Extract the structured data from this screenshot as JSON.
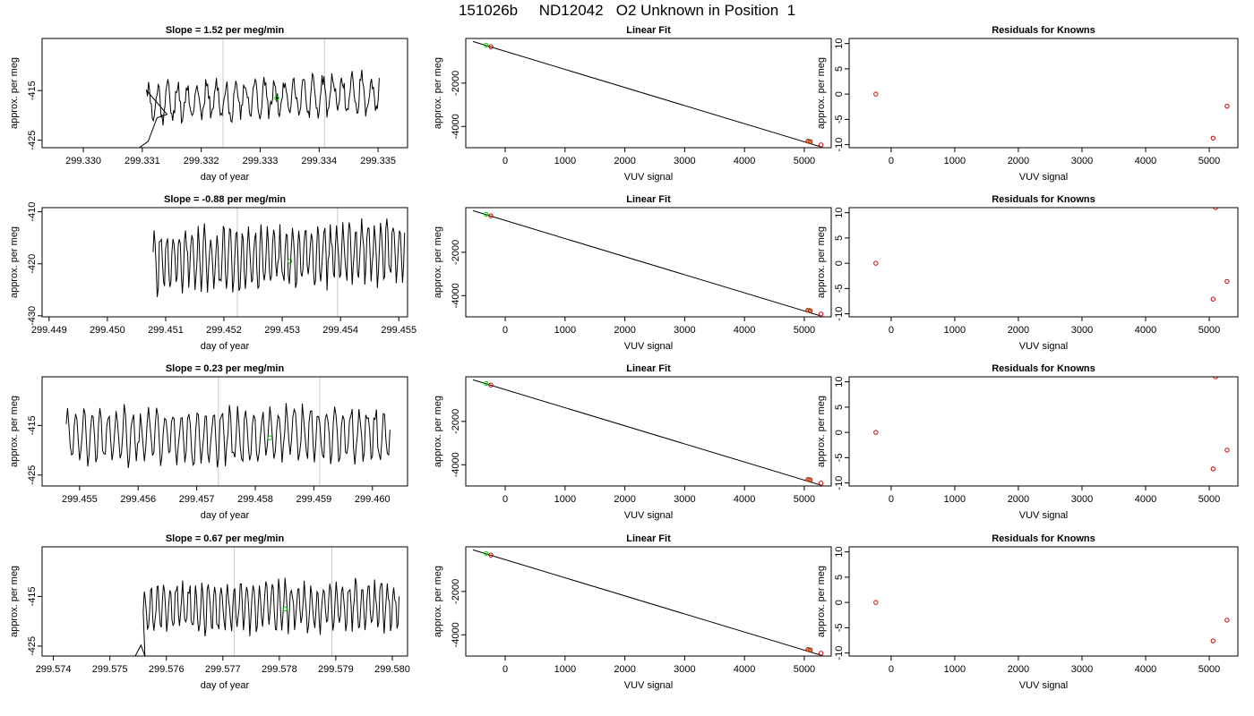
{
  "title": "151026b     ND12042   O2 Unknown in Position  1",
  "chart_data": [
    {
      "type": "line",
      "title": "Slope =  1.52  per meg/min",
      "xlabel": "day of year",
      "ylabel": "approx. per meg",
      "xlim": [
        299.3293,
        299.3355
      ],
      "ylim": [
        -426.5,
        -404.5
      ],
      "xticks": [
        "299.330",
        "299.331",
        "299.332",
        "299.333",
        "299.334",
        "299.335"
      ],
      "xtick_values": [
        299.33,
        299.331,
        299.332,
        299.333,
        299.334,
        299.335
      ],
      "yticks": [
        "-425",
        "-415"
      ],
      "ytick_values": [
        -425,
        -415
      ],
      "vlines": [
        299.33237,
        299.33409
      ],
      "marker": {
        "x": 299.33328,
        "y": -416.5,
        "color": "#00cc00"
      },
      "series": [
        {
          "color": "#000000",
          "x0": 299.33095,
          "x1": 299.33502,
          "seed": 11,
          "mean": -416.5,
          "amp": 3.5,
          "period": 10,
          "noise": 1.5,
          "trend": 2.0,
          "yrange": [
            -426.5,
            -404.5
          ],
          "prefix": [
            [
              299.33095,
              -426.5
            ],
            [
              299.3311,
              -425.2
            ],
            [
              299.33125,
              -420.5
            ],
            [
              299.33142,
              -419.8
            ]
          ]
        }
      ],
      "line_color": "#000000"
    },
    {
      "type": "scatter",
      "title": "Linear Fit",
      "xlabel": "VUV signal",
      "ylabel": "approx. per meg",
      "xlim": [
        -660,
        5450
      ],
      "ylim": [
        -4980,
        60
      ],
      "xticks": [
        "0",
        "1000",
        "2000",
        "3000",
        "4000",
        "5000"
      ],
      "xtick_values": [
        0,
        1000,
        2000,
        3000,
        4000,
        5000
      ],
      "yticks": [
        "-4000",
        "-2000"
      ],
      "ytick_values": [
        -4000,
        -2000
      ],
      "fit_line": {
        "x": [
          -540,
          5300
        ],
        "y": [
          -80,
          -4960
        ]
      },
      "points": [
        {
          "x": -320,
          "y": -250,
          "color": "#00cc00"
        },
        {
          "x": -240,
          "y": -320,
          "color": "#cc0000"
        },
        {
          "x": 5060,
          "y": -4680,
          "color": "#cc0000"
        },
        {
          "x": 5080,
          "y": -4690,
          "color": "#00cc00"
        },
        {
          "x": 5100,
          "y": -4700,
          "color": "#cc0000"
        },
        {
          "x": 5280,
          "y": -4850,
          "color": "#cc0000"
        }
      ]
    },
    {
      "type": "scatter",
      "title": "Residuals for Knowns",
      "xlabel": "VUV signal",
      "ylabel": "approx. per meg",
      "xlim": [
        -660,
        5450
      ],
      "ylim": [
        -10.6,
        11
      ],
      "xticks": [
        "0",
        "1000",
        "2000",
        "3000",
        "4000",
        "5000"
      ],
      "xtick_values": [
        0,
        1000,
        2000,
        3000,
        4000,
        5000
      ],
      "yticks": [
        "-10",
        "-5",
        "0",
        "5",
        "10"
      ],
      "ytick_values": [
        -10,
        -5,
        0,
        5,
        10
      ],
      "points": [
        {
          "x": -240,
          "y": 0,
          "color": "#cc0000"
        },
        {
          "x": 5060,
          "y": -8.7,
          "color": "#cc0000"
        },
        {
          "x": 5280,
          "y": -2.4,
          "color": "#cc0000"
        }
      ]
    },
    {
      "type": "line",
      "title": "Slope =  -0.88  per meg/min",
      "xlabel": "day of year",
      "ylabel": "approx. per meg",
      "xlim": [
        299.44888,
        299.45515
      ],
      "ylim": [
        -430.2,
        -409.2
      ],
      "xticks": [
        "299.449",
        "299.450",
        "299.451",
        "299.452",
        "299.453",
        "299.454",
        "299.455"
      ],
      "xtick_values": [
        299.449,
        299.45,
        299.451,
        299.452,
        299.453,
        299.454,
        299.455
      ],
      "yticks": [
        "-430",
        "-420",
        "-410"
      ],
      "ytick_values": [
        -430,
        -420,
        -410
      ],
      "vlines": [
        299.45223,
        299.45395
      ],
      "marker": {
        "x": 299.45313,
        "y": -419.5,
        "color": "#00cc00"
      },
      "series": [
        {
          "color": "#000000",
          "x0": 299.45065,
          "x1": 299.4551,
          "seed": 23,
          "mean": -418.5,
          "amp": 5.5,
          "period": 6,
          "noise": 1.8,
          "trend": 2.5,
          "yrange": [
            -430.2,
            -409.2
          ],
          "prefix": []
        }
      ]
    },
    {
      "type": "scatter",
      "title": "Linear Fit",
      "xlabel": "VUV signal",
      "ylabel": "approx. per meg",
      "xlim": [
        -660,
        5450
      ],
      "ylim": [
        -4980,
        60
      ],
      "xticks": [
        "0",
        "1000",
        "2000",
        "3000",
        "4000",
        "5000"
      ],
      "xtick_values": [
        0,
        1000,
        2000,
        3000,
        4000,
        5000
      ],
      "yticks": [
        "-4000",
        "-2000"
      ],
      "ytick_values": [
        -4000,
        -2000
      ],
      "fit_line": {
        "x": [
          -540,
          5300
        ],
        "y": [
          -80,
          -4960
        ]
      },
      "points": [
        {
          "x": -320,
          "y": -250,
          "color": "#00cc00"
        },
        {
          "x": -240,
          "y": -320,
          "color": "#cc0000"
        },
        {
          "x": 5060,
          "y": -4680,
          "color": "#cc0000"
        },
        {
          "x": 5080,
          "y": -4690,
          "color": "#00cc00"
        },
        {
          "x": 5100,
          "y": -4700,
          "color": "#cc0000"
        },
        {
          "x": 5280,
          "y": -4850,
          "color": "#cc0000"
        }
      ]
    },
    {
      "type": "scatter",
      "title": "Residuals for Knowns",
      "xlabel": "VUV signal",
      "ylabel": "approx. per meg",
      "xlim": [
        -660,
        5450
      ],
      "ylim": [
        -10.6,
        11
      ],
      "xticks": [
        "0",
        "1000",
        "2000",
        "3000",
        "4000",
        "5000"
      ],
      "xtick_values": [
        0,
        1000,
        2000,
        3000,
        4000,
        5000
      ],
      "yticks": [
        "-10",
        "-5",
        "0",
        "5",
        "10"
      ],
      "ytick_values": [
        -10,
        -5,
        0,
        5,
        10
      ],
      "points": [
        {
          "x": -240,
          "y": 0,
          "color": "#cc0000"
        },
        {
          "x": 5060,
          "y": -7.1,
          "color": "#cc0000"
        },
        {
          "x": 5280,
          "y": -3.6,
          "color": "#cc0000"
        },
        {
          "x": 5100,
          "y": 11,
          "color": "#cc0000"
        }
      ]
    },
    {
      "type": "line",
      "title": "Slope =  0.23  per meg/min",
      "xlabel": "day of year",
      "ylabel": "approx. per meg",
      "xlim": [
        299.45436,
        299.4606
      ],
      "ylim": [
        -427.2,
        -405.2
      ],
      "xticks": [
        "299.455",
        "299.456",
        "299.457",
        "299.458",
        "299.459",
        "299.460"
      ],
      "xtick_values": [
        299.455,
        299.456,
        299.457,
        299.458,
        299.459,
        299.46
      ],
      "yticks": [
        "-425",
        "-415"
      ],
      "ytick_values": [
        -425,
        -415
      ],
      "vlines": [
        299.45737,
        299.4591
      ],
      "marker": {
        "x": 299.45825,
        "y": -417.5,
        "color": "#00cc00"
      },
      "series": [
        {
          "color": "#000000",
          "x0": 299.4546,
          "x1": 299.4603,
          "seed": 37,
          "mean": -417.0,
          "amp": 5.0,
          "period": 6,
          "noise": 1.6,
          "trend": 0.3,
          "yrange": [
            -427.2,
            -405.2
          ],
          "prefix": []
        }
      ]
    },
    {
      "type": "scatter",
      "title": "Linear Fit",
      "xlabel": "VUV signal",
      "ylabel": "approx. per meg",
      "xlim": [
        -660,
        5450
      ],
      "ylim": [
        -4980,
        60
      ],
      "xticks": [
        "0",
        "1000",
        "2000",
        "3000",
        "4000",
        "5000"
      ],
      "xtick_values": [
        0,
        1000,
        2000,
        3000,
        4000,
        5000
      ],
      "yticks": [
        "-4000",
        "-2000"
      ],
      "ytick_values": [
        -4000,
        -2000
      ],
      "fit_line": {
        "x": [
          -540,
          5300
        ],
        "y": [
          -80,
          -4960
        ]
      },
      "points": [
        {
          "x": -320,
          "y": -250,
          "color": "#00cc00"
        },
        {
          "x": -240,
          "y": -320,
          "color": "#cc0000"
        },
        {
          "x": 5060,
          "y": -4680,
          "color": "#cc0000"
        },
        {
          "x": 5080,
          "y": -4690,
          "color": "#00cc00"
        },
        {
          "x": 5100,
          "y": -4700,
          "color": "#cc0000"
        },
        {
          "x": 5280,
          "y": -4850,
          "color": "#cc0000"
        }
      ]
    },
    {
      "type": "scatter",
      "title": "Residuals for Knowns",
      "xlabel": "VUV signal",
      "ylabel": "approx. per meg",
      "xlim": [
        -660,
        5450
      ],
      "ylim": [
        -10.6,
        11
      ],
      "xticks": [
        "0",
        "1000",
        "2000",
        "3000",
        "4000",
        "5000"
      ],
      "xtick_values": [
        0,
        1000,
        2000,
        3000,
        4000,
        5000
      ],
      "yticks": [
        "-10",
        "-5",
        "0",
        "5",
        "10"
      ],
      "ytick_values": [
        -10,
        -5,
        0,
        5,
        10
      ],
      "points": [
        {
          "x": -240,
          "y": 0,
          "color": "#cc0000"
        },
        {
          "x": 5060,
          "y": -7.2,
          "color": "#cc0000"
        },
        {
          "x": 5280,
          "y": -3.5,
          "color": "#cc0000"
        },
        {
          "x": 5100,
          "y": 11,
          "color": "#cc0000"
        }
      ]
    },
    {
      "type": "line",
      "title": "Slope =  0.67  per meg/min",
      "xlabel": "day of year",
      "ylabel": "approx. per meg",
      "xlim": [
        299.5738,
        299.58027
      ],
      "ylim": [
        -427.0,
        -405.0
      ],
      "xticks": [
        "299.574",
        "299.575",
        "299.576",
        "299.577",
        "299.578",
        "299.579",
        "299.580"
      ],
      "xtick_values": [
        299.574,
        299.575,
        299.576,
        299.577,
        299.578,
        299.579,
        299.58
      ],
      "yticks": [
        "-425",
        "-415"
      ],
      "ytick_values": [
        -425,
        -415
      ],
      "vlines": [
        299.5772,
        299.57893
      ],
      "marker": {
        "x": 299.5781,
        "y": -417.5,
        "color": "#00cc00"
      },
      "series": [
        {
          "color": "#000000",
          "x0": 299.57545,
          "x1": 299.58012,
          "seed": 53,
          "mean": -417.0,
          "amp": 4.5,
          "period": 6,
          "noise": 1.5,
          "trend": 0.8,
          "yrange": [
            -427.0,
            -405.0
          ],
          "prefix": [
            [
              299.57545,
              -427.0
            ],
            [
              299.57555,
              -424.8
            ],
            [
              299.57562,
              -427.0
            ]
          ]
        }
      ]
    },
    {
      "type": "scatter",
      "title": "Linear Fit",
      "xlabel": "VUV signal",
      "ylabel": "approx. per meg",
      "xlim": [
        -660,
        5450
      ],
      "ylim": [
        -4980,
        60
      ],
      "xticks": [
        "0",
        "1000",
        "2000",
        "3000",
        "4000",
        "5000"
      ],
      "xtick_values": [
        0,
        1000,
        2000,
        3000,
        4000,
        5000
      ],
      "yticks": [
        "-4000",
        "-2000"
      ],
      "ytick_values": [
        -4000,
        -2000
      ],
      "fit_line": {
        "x": [
          -540,
          5300
        ],
        "y": [
          -80,
          -4960
        ]
      },
      "points": [
        {
          "x": -320,
          "y": -250,
          "color": "#00cc00"
        },
        {
          "x": -240,
          "y": -320,
          "color": "#cc0000"
        },
        {
          "x": 5060,
          "y": -4680,
          "color": "#cc0000"
        },
        {
          "x": 5080,
          "y": -4690,
          "color": "#00cc00"
        },
        {
          "x": 5100,
          "y": -4700,
          "color": "#cc0000"
        },
        {
          "x": 5280,
          "y": -4850,
          "color": "#cc0000"
        }
      ]
    },
    {
      "type": "scatter",
      "title": "Residuals for Knowns",
      "xlabel": "VUV signal",
      "ylabel": "approx. per meg",
      "xlim": [
        -660,
        5450
      ],
      "ylim": [
        -10.6,
        11
      ],
      "xticks": [
        "0",
        "1000",
        "2000",
        "3000",
        "4000",
        "5000"
      ],
      "xtick_values": [
        0,
        1000,
        2000,
        3000,
        4000,
        5000
      ],
      "yticks": [
        "-10",
        "-5",
        "0",
        "5",
        "10"
      ],
      "ytick_values": [
        -10,
        -5,
        0,
        5,
        10
      ],
      "points": [
        {
          "x": -240,
          "y": 0,
          "color": "#cc0000"
        },
        {
          "x": 5060,
          "y": -7.6,
          "color": "#cc0000"
        },
        {
          "x": 5280,
          "y": -3.5,
          "color": "#cc0000"
        }
      ]
    }
  ]
}
